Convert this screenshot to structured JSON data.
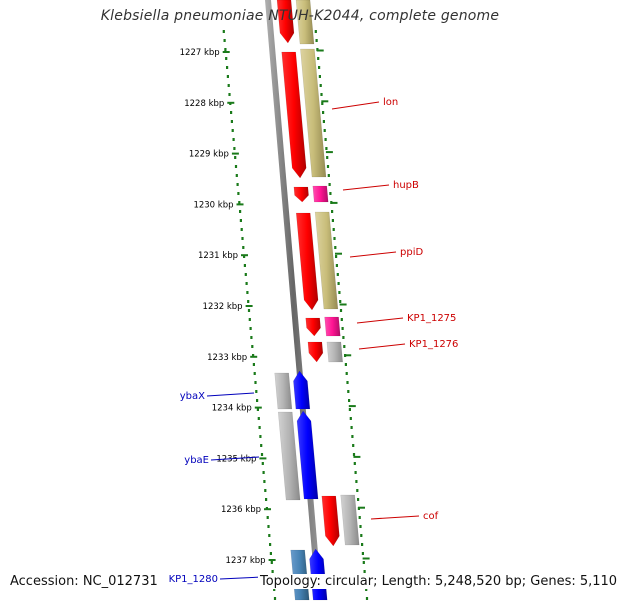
{
  "title": "Klebsiella pneumoniae NTUH-K2044, complete genome",
  "footer": {
    "accession": "Accession: NC_012731",
    "summary": "Topology: circular; Length: 5,248,520 bp; Genes: 5,110"
  },
  "colors": {
    "forward_cds": "#ff0000",
    "reverse_cds": "#0000ff",
    "forward_gene": "#c8bd7a",
    "grey_gene": "#b4b4b4",
    "magenta": "#ff1493",
    "steel_blue": "#4682b4",
    "tick_green": "#1a7a1a",
    "label_red": "#cc0000",
    "label_blue": "#0000bb"
  },
  "ticks": [
    "1227 kbp",
    "1228 kbp",
    "1229 kbp",
    "1230 kbp",
    "1231 kbp",
    "1232 kbp",
    "1233 kbp",
    "1234 kbp",
    "1235 kbp",
    "1236 kbp",
    "1237 kbp"
  ],
  "forward_labels": [
    "lon",
    "hupB",
    "ppiD",
    "KP1_1275",
    "KP1_1276",
    "cof"
  ],
  "reverse_labels": [
    "ybaX",
    "ybaE",
    "KP1_1280"
  ]
}
